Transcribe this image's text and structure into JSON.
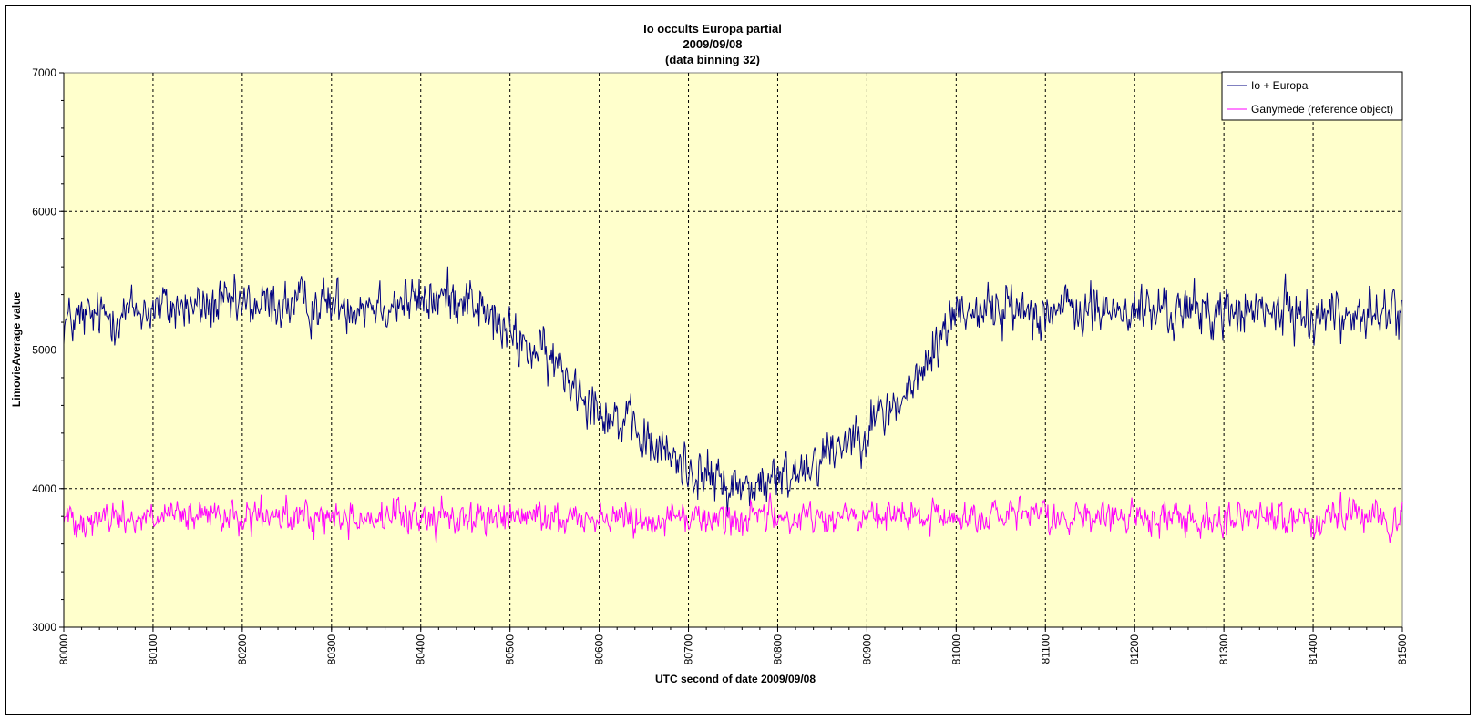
{
  "chart_data": {
    "type": "line",
    "title": [
      "Io occults Europa partial",
      "2009/09/08",
      "(data binning 32)"
    ],
    "xlabel": "UTC second  of date 2009/09/08",
    "ylabel": "LimovieAverage value",
    "xlim": [
      80000,
      81500
    ],
    "ylim": [
      3000,
      7000
    ],
    "x_ticks": [
      80000,
      80100,
      80200,
      80300,
      80400,
      80500,
      80600,
      80700,
      80800,
      80900,
      81000,
      81100,
      81200,
      81300,
      81400,
      81500
    ],
    "y_ticks": [
      3000,
      4000,
      5000,
      6000,
      7000
    ],
    "grid": true,
    "legend_position": "top-right",
    "plot_background": "#ffffcc",
    "series": [
      {
        "name": "Io  + Europa",
        "color": "#000080",
        "profile_x": [
          80000,
          80100,
          80400,
          80450,
          80500,
          80550,
          80600,
          80650,
          80700,
          80750,
          80800,
          80850,
          80900,
          80950,
          81000,
          81500
        ],
        "profile_y": [
          5200,
          5300,
          5350,
          5400,
          5100,
          4900,
          4600,
          4350,
          4150,
          4000,
          4050,
          4250,
          4450,
          4700,
          5300,
          5250
        ],
        "noise_amplitude": 260,
        "points": 1500
      },
      {
        "name": "Ganymede (reference object)",
        "color": "#ff00ff",
        "profile_x": [
          80000,
          81500
        ],
        "profile_y": [
          3790,
          3790
        ],
        "noise_amplitude": 170,
        "points": 1500
      }
    ]
  }
}
